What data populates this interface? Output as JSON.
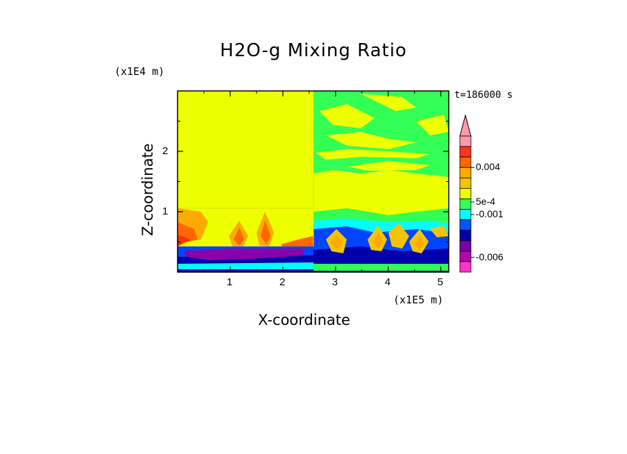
{
  "chart_data": {
    "type": "heatmap",
    "title": "H2O-g Mixing Ratio",
    "xlabel": "X-coordinate",
    "ylabel": "Z-coordinate",
    "x_unit": "(x1E5 m)",
    "y_unit": "(x1E4 m)",
    "time_label": "t=186000 s",
    "xlim": [
      0,
      5.15
    ],
    "ylim": [
      0,
      3.0
    ],
    "x_ticks": [
      "1",
      "2",
      "3",
      "4",
      "5"
    ],
    "y_ticks": [
      "1",
      "2"
    ],
    "colorbar": {
      "tick_labels": [
        "0.004",
        "5e-4",
        "-0.001",
        "-0.006"
      ],
      "levels": [
        "#ff99aa",
        "#ff3322",
        "#ff6600",
        "#ffaa00",
        "#f5c400",
        "#eeff00",
        "#33ff55",
        "#00ffff",
        "#0055ff",
        "#0000aa",
        "#7700aa",
        "#bb00aa",
        "#ff33cc"
      ]
    }
  },
  "colors": {
    "background": "#ffffff",
    "field_yellow": "#eeff00",
    "field_green": "#33ff55",
    "field_cyan": "#00ffff",
    "field_blue": "#0044ff",
    "field_navy": "#0000aa",
    "field_orange": "#ffaa00",
    "field_red": "#ff3300",
    "field_purple": "#8800aa"
  }
}
